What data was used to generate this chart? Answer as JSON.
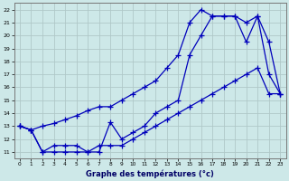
{
  "title": "Graphe des températures (°c)",
  "bg_color": "#cde8e8",
  "grid_color": "#b0c8c8",
  "line_color": "#0000bb",
  "xlim": [
    -0.5,
    23.5
  ],
  "ylim": [
    10.5,
    22.5
  ],
  "xticks": [
    0,
    1,
    2,
    3,
    4,
    5,
    6,
    7,
    8,
    9,
    10,
    11,
    12,
    13,
    14,
    15,
    16,
    17,
    18,
    19,
    20,
    21,
    22,
    23
  ],
  "yticks": [
    11,
    12,
    13,
    14,
    15,
    16,
    17,
    18,
    19,
    20,
    21,
    22
  ],
  "line1_x": [
    0,
    1,
    2,
    3,
    4,
    5,
    6,
    7,
    8,
    9,
    10,
    11,
    12,
    13,
    14,
    15,
    16,
    17,
    18,
    19,
    20,
    21,
    22,
    23
  ],
  "line1_y": [
    13.0,
    12.7,
    13.0,
    13.2,
    13.5,
    13.8,
    14.2,
    14.5,
    14.5,
    15.0,
    15.5,
    16.0,
    16.5,
    17.5,
    18.5,
    21.0,
    22.0,
    21.5,
    21.5,
    21.5,
    21.0,
    21.5,
    17.0,
    15.5
  ],
  "line2_x": [
    0,
    1,
    2,
    3,
    4,
    5,
    6,
    7,
    8,
    9,
    10,
    11,
    12,
    13,
    14,
    15,
    16,
    17,
    18,
    19,
    20,
    21,
    22,
    23
  ],
  "line2_y": [
    13.0,
    12.7,
    11.0,
    11.0,
    11.0,
    11.0,
    11.0,
    11.0,
    13.3,
    12.0,
    12.5,
    13.0,
    14.0,
    14.5,
    15.0,
    18.5,
    20.0,
    21.5,
    21.5,
    21.5,
    19.5,
    21.5,
    19.5,
    15.5
  ],
  "line3_x": [
    0,
    1,
    2,
    3,
    4,
    5,
    6,
    7,
    8,
    9,
    10,
    11,
    12,
    13,
    14,
    15,
    16,
    17,
    18,
    19,
    20,
    21,
    22,
    23
  ],
  "line3_y": [
    13.0,
    12.7,
    11.0,
    11.5,
    11.5,
    11.5,
    11.0,
    11.5,
    11.5,
    11.5,
    12.0,
    12.5,
    13.0,
    13.5,
    14.0,
    14.5,
    15.0,
    15.5,
    16.0,
    16.5,
    17.0,
    17.5,
    15.5,
    15.5
  ]
}
